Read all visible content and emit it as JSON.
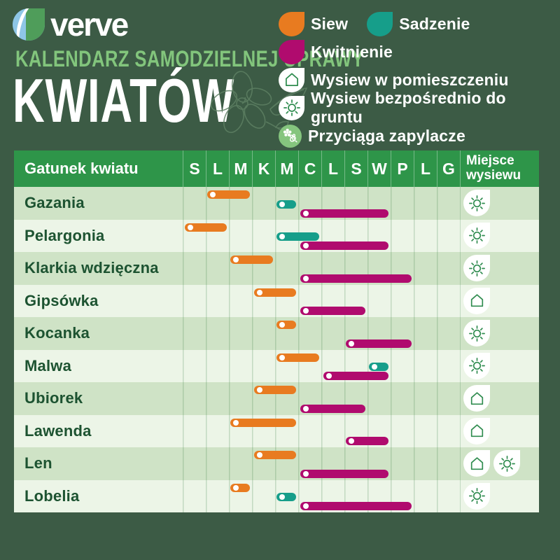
{
  "brand": {
    "wordmark": "verve"
  },
  "title": {
    "subtitle": "KALENDARZ SAMODZIELNEJ UPRAWY",
    "main": "KWIATÓW"
  },
  "legend": {
    "siew": {
      "label": "Siew",
      "color": "#e87b20"
    },
    "sadzenie": {
      "label": "Sadzenie",
      "color": "#169e8a"
    },
    "kwitnienie": {
      "label": "Kwitnienie",
      "color": "#b00b6e"
    },
    "indoor": {
      "label": "Wysiew w pomieszczeniu"
    },
    "direct": {
      "label": "Wysiew bezpośrednio do gruntu"
    },
    "pollinators": {
      "label": "Przyciąga zapylacze"
    }
  },
  "table": {
    "species_header": "Gatunek kwiatu",
    "months": [
      "S",
      "L",
      "M",
      "K",
      "M",
      "C",
      "L",
      "S",
      "W",
      "P",
      "L",
      "G"
    ],
    "place_header_line1": "Miejsce",
    "place_header_line2": "wysiewu"
  },
  "colors": {
    "page_bg": "#3c5b45",
    "header_green": "#2e9549",
    "row_dark": "#cfe3c6",
    "row_light": "#ecf5e7",
    "label_text": "#1d5331",
    "subtitle_green": "#82c57c",
    "icon_stroke": "#2f8c4f",
    "pollinator_bg": "#85c57e",
    "logo_blue": "#8ec6e6",
    "logo_green": "#4f9d5a"
  },
  "chart_data": {
    "type": "table",
    "title": "Kalendarz samodzielnej uprawy kwiatów",
    "x_categories": [
      "S",
      "L",
      "M",
      "K",
      "M",
      "C",
      "L",
      "S",
      "W",
      "P",
      "L",
      "G"
    ],
    "series_legend": [
      "Siew",
      "Sadzenie",
      "Kwitnienie"
    ],
    "rows": [
      {
        "species": "Gazania",
        "siew": [
          2,
          3
        ],
        "sadzenie": [
          5,
          5
        ],
        "kwitnienie": [
          6,
          9
        ],
        "place": [
          "direct"
        ]
      },
      {
        "species": "Pelargonia",
        "siew": [
          1,
          2
        ],
        "sadzenie": [
          5,
          6
        ],
        "kwitnienie": [
          6,
          9
        ],
        "place": [
          "direct"
        ]
      },
      {
        "species": "Klarkia wdzięczna",
        "siew": [
          3,
          4
        ],
        "sadzenie": null,
        "kwitnienie": [
          6,
          10
        ],
        "place": [
          "direct"
        ]
      },
      {
        "species": "Gipsówka",
        "siew": [
          4,
          5
        ],
        "sadzenie": null,
        "kwitnienie": [
          6,
          8
        ],
        "place": [
          "indoor"
        ]
      },
      {
        "species": "Kocanka",
        "siew": [
          5,
          5
        ],
        "sadzenie": null,
        "kwitnienie": [
          8,
          10
        ],
        "place": [
          "direct"
        ]
      },
      {
        "species": "Malwa",
        "siew": [
          5,
          6
        ],
        "sadzenie": [
          9,
          9
        ],
        "kwitnienie": [
          7,
          9
        ],
        "place": [
          "direct"
        ]
      },
      {
        "species": "Ubiorek",
        "siew": [
          4,
          5
        ],
        "sadzenie": null,
        "kwitnienie": [
          6,
          8
        ],
        "place": [
          "indoor"
        ]
      },
      {
        "species": "Lawenda",
        "siew": [
          3,
          5
        ],
        "sadzenie": null,
        "kwitnienie": [
          8,
          9
        ],
        "place": [
          "indoor"
        ]
      },
      {
        "species": "Len",
        "siew": [
          4,
          5
        ],
        "sadzenie": null,
        "kwitnienie": [
          6,
          9
        ],
        "place": [
          "indoor",
          "direct"
        ]
      },
      {
        "species": "Lobelia",
        "siew": [
          3,
          3
        ],
        "sadzenie": [
          5,
          5
        ],
        "kwitnienie": [
          6,
          10
        ],
        "place": [
          "direct"
        ]
      }
    ]
  }
}
